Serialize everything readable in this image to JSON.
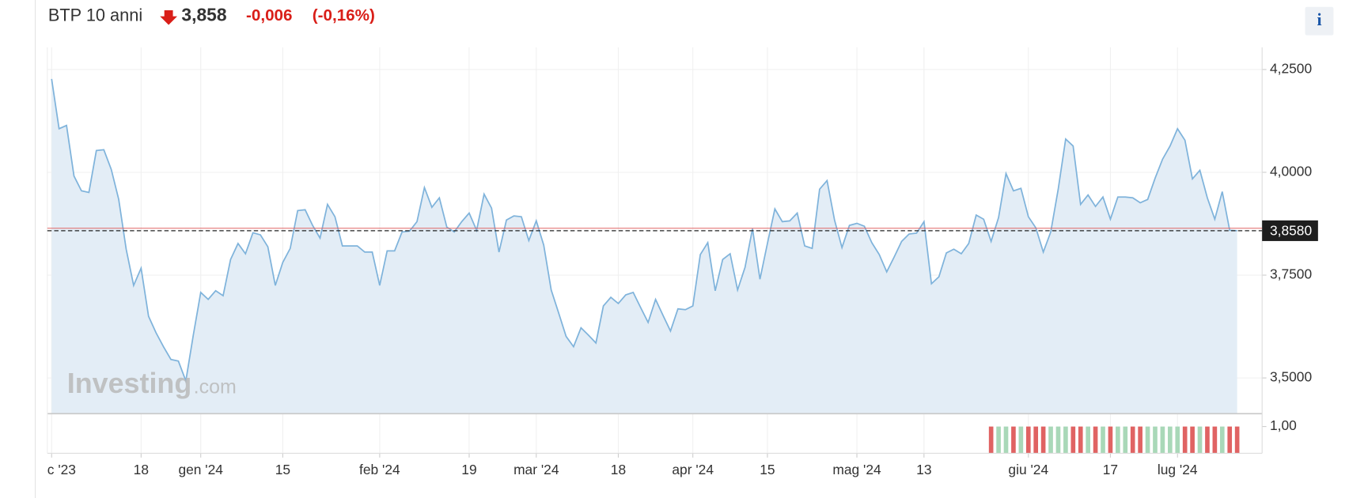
{
  "chart_data": {
    "type": "line",
    "title": "BTP 10 anni",
    "price": "3,858",
    "change": "-0,006",
    "change_pct": "(-0,16%)",
    "info_button": "i",
    "watermark": [
      "Investing",
      ".com"
    ],
    "color": "#7fb3db",
    "fill": "#e3edf6",
    "grid": true,
    "categories": [
      "c '23",
      null,
      null,
      null,
      null,
      null,
      null,
      null,
      null,
      null,
      null,
      null,
      "18",
      null,
      null,
      null,
      null,
      null,
      null,
      null,
      "gen '24",
      null,
      null,
      null,
      null,
      null,
      null,
      null,
      null,
      null,
      null,
      "15",
      null,
      null,
      null,
      null,
      null,
      null,
      null,
      null,
      null,
      null,
      null,
      null,
      "feb '24",
      null,
      null,
      null,
      null,
      null,
      null,
      null,
      null,
      null,
      null,
      null,
      "19",
      null,
      null,
      null,
      null,
      null,
      null,
      null,
      null,
      "mar '24",
      null,
      null,
      null,
      null,
      null,
      null,
      null,
      null,
      null,
      null,
      "18",
      null,
      null,
      null,
      null,
      null,
      null,
      null,
      null,
      null,
      "apr '24",
      null,
      null,
      null,
      null,
      null,
      null,
      null,
      null,
      null,
      "15",
      null,
      null,
      null,
      null,
      null,
      null,
      null,
      null,
      null,
      null,
      null,
      "mag '24",
      null,
      null,
      null,
      null,
      null,
      null,
      null,
      null,
      "13",
      null,
      null,
      null,
      null,
      null,
      null,
      null,
      null,
      null,
      null,
      null,
      null,
      null,
      "giu '24",
      null,
      null,
      null,
      null,
      null,
      null,
      null,
      null,
      null,
      null,
      "17",
      null,
      null,
      null,
      null,
      null,
      null,
      null,
      null,
      "lug '24",
      null,
      null,
      null,
      null,
      null,
      null,
      null,
      null
    ],
    "values": [
      4.227,
      4.106,
      4.114,
      3.991,
      3.955,
      3.951,
      4.053,
      4.055,
      4.007,
      3.934,
      3.813,
      3.725,
      3.767,
      3.65,
      3.61,
      3.576,
      3.545,
      3.541,
      3.493,
      3.604,
      3.708,
      3.691,
      3.712,
      3.7,
      3.788,
      3.827,
      3.802,
      3.853,
      3.848,
      3.819,
      3.725,
      3.781,
      3.815,
      3.907,
      3.909,
      3.871,
      3.84,
      3.922,
      3.892,
      3.821,
      3.821,
      3.821,
      3.806,
      3.806,
      3.725,
      3.809,
      3.809,
      3.855,
      3.857,
      3.88,
      3.963,
      3.915,
      3.938,
      3.867,
      3.855,
      3.88,
      3.901,
      3.859,
      3.947,
      3.913,
      3.806,
      3.884,
      3.894,
      3.892,
      3.834,
      3.882,
      3.823,
      3.714,
      3.658,
      3.601,
      3.576,
      3.622,
      3.604,
      3.585,
      3.675,
      3.696,
      3.681,
      3.702,
      3.708,
      3.671,
      3.635,
      3.691,
      3.652,
      3.614,
      3.668,
      3.666,
      3.675,
      3.8,
      3.829,
      3.712,
      3.788,
      3.802,
      3.714,
      3.769,
      3.863,
      3.74,
      3.827,
      3.911,
      3.88,
      3.882,
      3.901,
      3.821,
      3.815,
      3.959,
      3.98,
      3.884,
      3.817,
      3.871,
      3.876,
      3.869,
      3.829,
      3.8,
      3.758,
      3.794,
      3.832,
      3.85,
      3.852,
      3.88,
      3.729,
      3.746,
      3.804,
      3.813,
      3.802,
      3.827,
      3.896,
      3.886,
      3.832,
      3.89,
      3.997,
      3.955,
      3.961,
      3.892,
      3.865,
      3.806,
      3.855,
      3.959,
      4.081,
      4.064,
      3.922,
      3.945,
      3.917,
      3.94,
      3.886,
      3.94,
      3.94,
      3.938,
      3.926,
      3.934,
      3.986,
      4.032,
      4.064,
      4.106,
      4.078,
      3.984,
      4.005,
      3.938,
      3.886,
      3.953,
      3.859,
      3.858
    ],
    "ylim": [
      3.413,
      4.304
    ],
    "yticks": [
      {
        "value": 3.5,
        "label": "3,5000"
      },
      {
        "value": 3.75,
        "label": "3,7500"
      },
      {
        "value": 4.0,
        "label": "4,0000"
      },
      {
        "value": 4.25,
        "label": "4,2500"
      }
    ],
    "last_label": {
      "value": 3.858,
      "label": "3,8580"
    },
    "prev_close": 3.864,
    "prev_close_color": "#e06666",
    "indicator": {
      "up_color": "#a9d8b8",
      "down_color": "#e06363",
      "ylim": [
        0,
        1.48
      ],
      "yticks": [
        {
          "value": 1,
          "label": "1,00"
        }
      ],
      "values": [
        null,
        null,
        null,
        null,
        null,
        null,
        null,
        null,
        null,
        null,
        null,
        null,
        null,
        null,
        null,
        null,
        null,
        null,
        null,
        null,
        null,
        null,
        null,
        null,
        null,
        null,
        null,
        null,
        null,
        null,
        null,
        null,
        null,
        null,
        null,
        null,
        null,
        null,
        null,
        null,
        null,
        null,
        null,
        null,
        null,
        null,
        null,
        null,
        null,
        null,
        null,
        null,
        null,
        null,
        null,
        null,
        null,
        null,
        null,
        null,
        null,
        null,
        null,
        null,
        null,
        null,
        null,
        null,
        null,
        null,
        null,
        null,
        null,
        null,
        null,
        null,
        null,
        null,
        null,
        null,
        null,
        null,
        null,
        null,
        null,
        null,
        null,
        null,
        null,
        null,
        null,
        null,
        null,
        null,
        null,
        null,
        null,
        null,
        null,
        null,
        null,
        null,
        null,
        null,
        null,
        null,
        null,
        null,
        null,
        null,
        null,
        null,
        null,
        null,
        null,
        null,
        null,
        null,
        null,
        null,
        null,
        null,
        null,
        null,
        null,
        null,
        1,
        1,
        1,
        1,
        1,
        1,
        1,
        1,
        1,
        1,
        1,
        1,
        1,
        1,
        1,
        1,
        1,
        1,
        1,
        1,
        1,
        1,
        1,
        1,
        1,
        1,
        1,
        1,
        1,
        1,
        1,
        1,
        1,
        1
      ]
    }
  }
}
